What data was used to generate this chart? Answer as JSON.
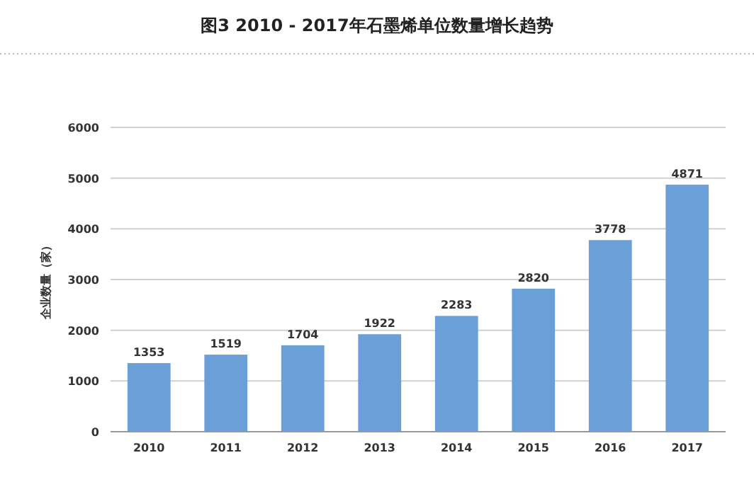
{
  "chart_data": {
    "type": "bar",
    "title": "图3 2010 - 2017年石墨烯单位数量增长趋势",
    "ylabel": "企业数量（家）",
    "categories": [
      "2010",
      "2011",
      "2012",
      "2013",
      "2014",
      "2015",
      "2016",
      "2017"
    ],
    "values": [
      1353,
      1519,
      1704,
      1922,
      2283,
      2820,
      3778,
      4871
    ],
    "color": "#6a9fd8",
    "ylim": [
      0,
      6000
    ],
    "yticks": [
      0,
      1000,
      2000,
      3000,
      4000,
      5000,
      6000
    ],
    "grid": "y",
    "data_labels": true
  }
}
